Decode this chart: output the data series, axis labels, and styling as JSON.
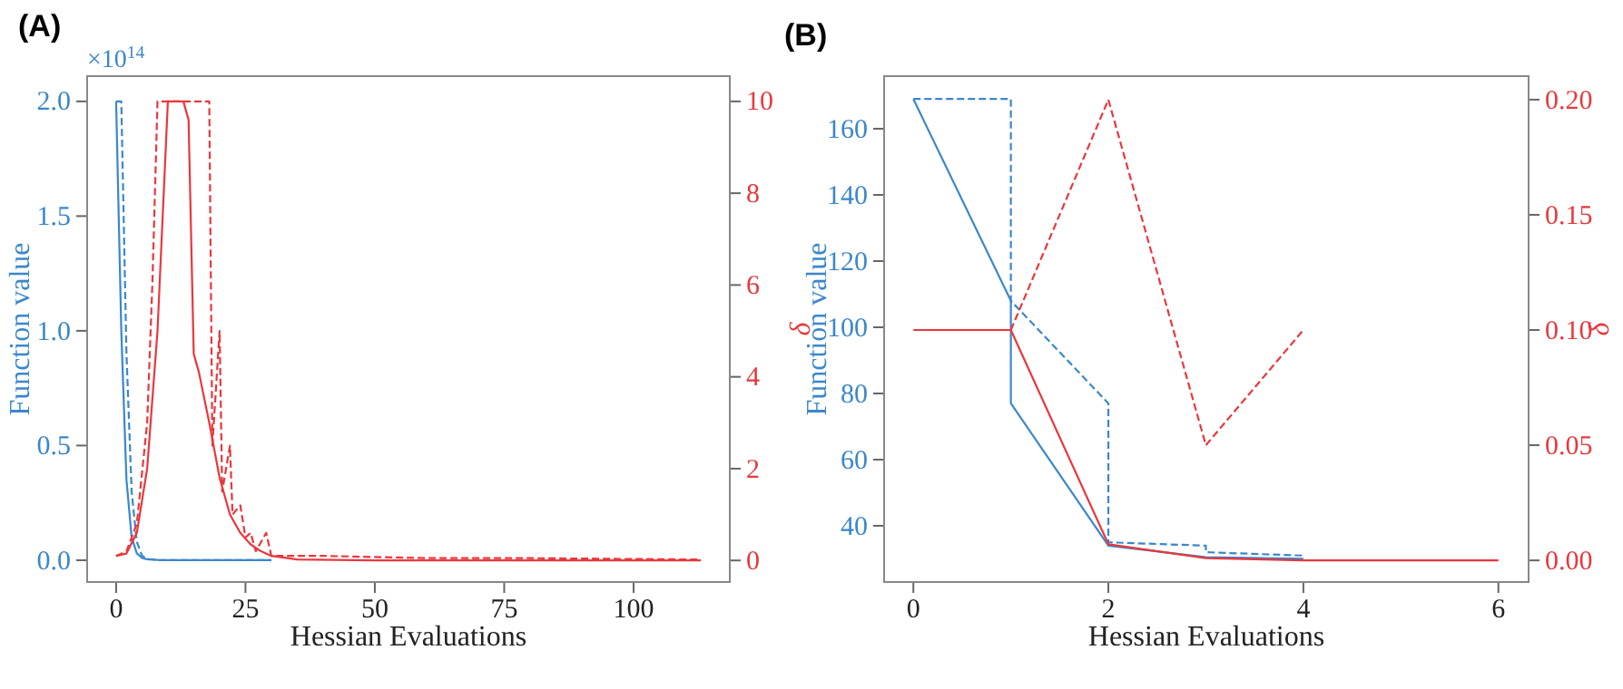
{
  "chart_data": [
    {
      "type": "line",
      "title": "(A)",
      "xlabel": "Hessian Evaluations",
      "ylabel": "Function value",
      "y2label": "δ",
      "annotations": [
        "×10$^{14}$"
      ],
      "xlim": [
        -5.6,
        118.6
      ],
      "xticks": [
        0,
        25,
        50,
        75,
        100
      ],
      "ylim": [
        -0.095,
        2.11
      ],
      "yticks": [
        {
          "value": 0,
          "label": "0.0"
        },
        {
          "value": 0.5,
          "label": "0.5"
        },
        {
          "value": 1,
          "label": "1.0"
        },
        {
          "value": 1.5,
          "label": "1.5"
        },
        {
          "value": 2,
          "label": "2.0"
        }
      ],
      "y2lim": [
        -0.47,
        10.55
      ],
      "y2ticks": [
        0,
        2,
        4,
        6,
        8,
        10
      ],
      "series": [
        {
          "color": "#3b87cb",
          "line_style": "solid",
          "x": [
            0,
            1,
            2,
            3,
            4,
            5,
            6,
            8,
            10,
            15,
            20,
            30
          ],
          "values": [
            2.0,
            1.0,
            0.35,
            0.1,
            0.03,
            0.01,
            0.004,
            0.001,
            0,
            0,
            0,
            0
          ]
        },
        {
          "color": "#3b87cb",
          "line_style": "dashed",
          "x": [
            0,
            1,
            2,
            3,
            4,
            5,
            6,
            8,
            10,
            15,
            20,
            30
          ],
          "values": [
            2.0,
            2.0,
            0.9,
            0.3,
            0.08,
            0.02,
            0.005,
            0.001,
            0,
            0,
            0,
            0
          ]
        },
        {
          "color": "#e8383d",
          "line_style": "solid",
          "axis": "y2",
          "x": [
            0,
            2,
            4,
            6,
            8,
            9,
            10,
            13,
            14,
            15,
            16,
            18,
            20,
            22,
            24,
            26,
            28,
            30,
            35,
            50,
            113
          ],
          "values": [
            0.1,
            0.15,
            0.6,
            2.0,
            5.0,
            7.5,
            10,
            10,
            9.6,
            4.5,
            4.1,
            3.0,
            1.8,
            1.0,
            0.6,
            0.35,
            0.2,
            0.1,
            0.02,
            0,
            0
          ]
        },
        {
          "color": "#e8383d",
          "line_style": "dashed",
          "axis": "y2",
          "x": [
            0,
            2,
            4,
            6,
            7,
            8,
            18,
            18.6,
            20,
            20.5,
            22,
            22.5,
            24,
            25,
            26,
            27,
            29,
            30,
            32,
            40,
            60,
            80,
            113
          ],
          "values": [
            0.1,
            0.2,
            0.8,
            3.0,
            6.0,
            10,
            10,
            2.5,
            5.0,
            1.5,
            2.5,
            1.0,
            1.2,
            0.5,
            0.6,
            0.2,
            0.6,
            0.1,
            0.1,
            0.1,
            0.05,
            0.05,
            0.02
          ]
        }
      ]
    },
    {
      "type": "line",
      "title": "(B)",
      "xlabel": "Hessian Evaluations",
      "ylabel": "Function value",
      "y2label": "δ",
      "xlim": [
        -0.3,
        6.31
      ],
      "xticks": [
        0,
        2,
        4,
        6
      ],
      "ylim": [
        23,
        175.9
      ],
      "yticks": [
        40,
        60,
        80,
        100,
        120,
        140,
        160
      ],
      "y2lim": [
        -0.0094,
        0.2102
      ],
      "y2ticks": [
        {
          "value": 0,
          "label": "0.00"
        },
        {
          "value": 0.05,
          "label": "0.05"
        },
        {
          "value": 0.1,
          "label": "0.10"
        },
        {
          "value": 0.15,
          "label": "0.15"
        },
        {
          "value": 0.2,
          "label": "0.20"
        }
      ],
      "series": [
        {
          "color": "#3b87cb",
          "line_style": "solid",
          "x": [
            0,
            1,
            1,
            2,
            3,
            4
          ],
          "values": [
            169,
            108,
            77,
            34,
            30.5,
            30
          ]
        },
        {
          "color": "#3b87cb",
          "line_style": "dashed",
          "x": [
            0,
            1,
            1,
            2,
            2,
            3,
            3,
            4
          ],
          "values": [
            169,
            169,
            108,
            77,
            35,
            34,
            32,
            31
          ]
        },
        {
          "color": "#e8383d",
          "line_style": "solid",
          "axis": "y2",
          "x": [
            0,
            1,
            2,
            3,
            4,
            5,
            6
          ],
          "values": [
            0.1,
            0.1,
            0.007,
            0.001,
            0,
            0,
            0
          ]
        },
        {
          "color": "#e8383d",
          "line_style": "dashed",
          "axis": "y2",
          "x": [
            1,
            2,
            3,
            4
          ],
          "values": [
            0.1,
            0.2,
            0.05,
            0.1
          ]
        }
      ]
    }
  ]
}
